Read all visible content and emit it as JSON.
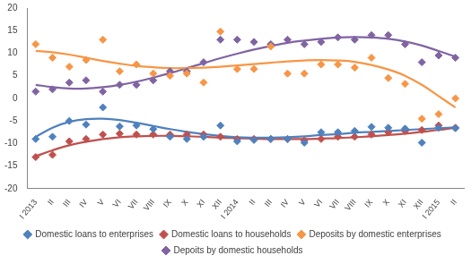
{
  "chart_data": {
    "type": "scatter",
    "marker": "diamond",
    "grid": false,
    "legend": "bottom",
    "categories": [
      "I 2013",
      "II",
      "III",
      "IV",
      "V",
      "VI",
      "VII",
      "VIII",
      "IX",
      "X",
      "XI",
      "XII",
      "I 2014",
      "II",
      "III",
      "IV",
      "V",
      "VI",
      "VII",
      "VIII",
      "IX",
      "X",
      "XI",
      "XII",
      "I 2015",
      "II"
    ],
    "ylim": [
      -20,
      20
    ],
    "yticks": [
      -20,
      -15,
      -10,
      -5,
      0,
      5,
      10,
      15,
      20
    ],
    "series": [
      {
        "name": "Domestic loans to enterprises",
        "color": "#4f81bd",
        "values": [
          -9,
          -8.5,
          -5,
          -5.8,
          -2,
          -6.2,
          -6,
          -6.8,
          -8.5,
          -9,
          -8.5,
          -6,
          -9.5,
          -9.2,
          -9,
          -9,
          -9.8,
          -7.5,
          -7.5,
          -7.2,
          -6.3,
          -6.5,
          -6.7,
          -9.8,
          -6.5,
          -6.6
        ],
        "trend": [
          -8.5,
          -6.5,
          -5.2,
          -4.6,
          -4.5,
          -4.8,
          -5.4,
          -6.1,
          -6.8,
          -7.4,
          -7.9,
          -8.3,
          -8.6,
          -8.7,
          -8.7,
          -8.6,
          -8.4,
          -8.1,
          -7.9,
          -7.6,
          -7.4,
          -7.2,
          -7.0,
          -6.8,
          -6.6,
          -6.4
        ]
      },
      {
        "name": "Domestic loans to households",
        "color": "#c0504d",
        "values": [
          -13,
          -12.5,
          -9.5,
          -9,
          -8,
          -7.8,
          -8,
          -8,
          -8,
          -8,
          -8,
          -8.5,
          -9,
          -9,
          -9,
          -9,
          -9.3,
          -9,
          -8.5,
          -8.5,
          -8,
          -7.5,
          -7.2,
          -7,
          -6,
          -6.5
        ],
        "trend": [
          -12.8,
          -11.5,
          -10.4,
          -9.6,
          -9.0,
          -8.6,
          -8.4,
          -8.3,
          -8.3,
          -8.4,
          -8.5,
          -8.7,
          -8.8,
          -8.9,
          -9.0,
          -9.0,
          -9.0,
          -8.9,
          -8.8,
          -8.6,
          -8.4,
          -8.1,
          -7.8,
          -7.4,
          -7.0,
          -6.5
        ]
      },
      {
        "name": "Deposits by domestic enterprises",
        "color": "#f79646",
        "values": [
          12,
          9,
          7,
          8.5,
          13,
          6,
          7.5,
          5.5,
          5,
          5.5,
          3.5,
          14.8,
          6.5,
          6.5,
          11.5,
          5.5,
          5.5,
          7.5,
          7.5,
          6.8,
          9,
          4.5,
          3.2,
          -4.5,
          -3.5,
          0
        ],
        "trend": [
          10.5,
          10.2,
          9.7,
          9.0,
          8.3,
          7.7,
          7.2,
          6.9,
          6.7,
          6.7,
          6.8,
          7.0,
          7.3,
          7.6,
          7.9,
          8.2,
          8.4,
          8.5,
          8.4,
          8.1,
          7.4,
          6.4,
          5.0,
          3.0,
          0.5,
          -2.0
        ]
      },
      {
        "name": "Depoits by domestic households",
        "color": "#8064a2",
        "values": [
          1.5,
          2,
          3.5,
          4,
          1.5,
          3,
          3,
          4,
          6,
          6,
          8,
          13,
          13,
          12.5,
          12,
          13,
          12,
          12.5,
          13.5,
          13,
          14,
          14,
          12,
          8,
          9.5,
          9
        ],
        "trend": [
          3.0,
          2.5,
          2.2,
          2.2,
          2.5,
          3.0,
          3.7,
          4.6,
          5.6,
          6.7,
          7.8,
          8.9,
          9.9,
          10.8,
          11.6,
          12.3,
          12.8,
          13.2,
          13.5,
          13.6,
          13.5,
          13.2,
          12.6,
          11.7,
          10.5,
          9.2
        ]
      }
    ]
  }
}
